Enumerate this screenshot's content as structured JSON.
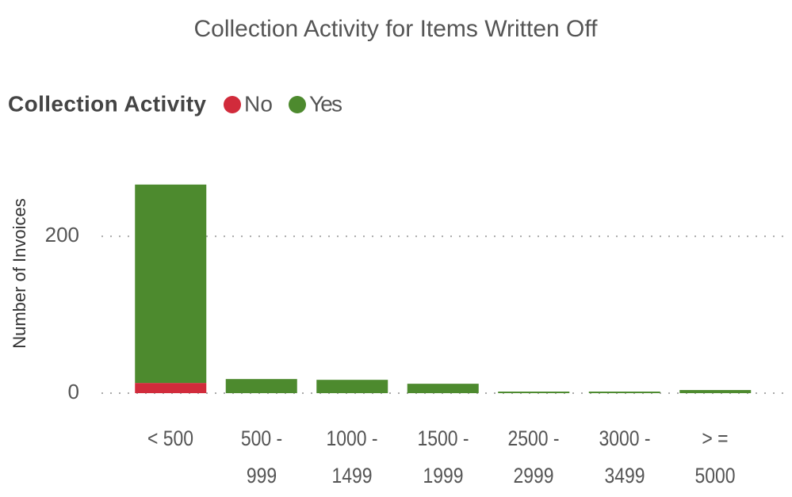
{
  "chart_data": {
    "type": "stacked_bar",
    "title": "Collection Activity for Items Written Off",
    "y_label": "Number of Invoices",
    "legend_title": "Collection Activity",
    "categories": [
      "< 500",
      "500 -\n999",
      "1000 -\n1499",
      "1500 -\n1999",
      "2500 -\n2999",
      "3000 -\n3499",
      "> =\n5000"
    ],
    "series": [
      {
        "name": "No",
        "color": "#d12b3b",
        "values": [
          13,
          0,
          0,
          0,
          0,
          0,
          0
        ]
      },
      {
        "name": "Yes",
        "color": "#4d8a2e",
        "values": [
          253,
          18,
          17,
          12,
          2,
          2,
          4
        ]
      }
    ],
    "ylim": [
      0,
      280
    ],
    "yticks": [
      0,
      200
    ],
    "grid": true
  }
}
